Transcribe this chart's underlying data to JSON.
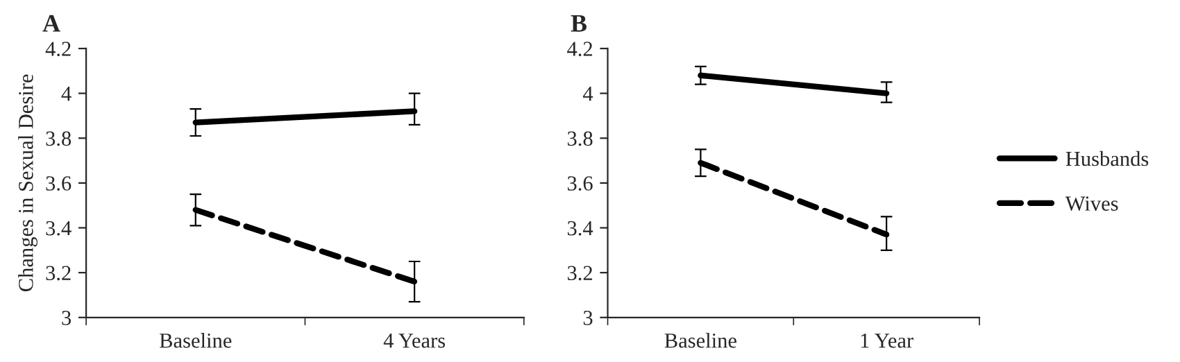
{
  "chart_data": [
    {
      "type": "line",
      "title": "A",
      "ylabel": "Changes in Sexual Desire",
      "categories": [
        "Baseline",
        "4 Years"
      ],
      "ylim": [
        3,
        4.2
      ],
      "yticks": [
        3,
        3.2,
        3.4,
        3.6,
        3.8,
        4,
        4.2
      ],
      "grid": false,
      "legend": false,
      "series": [
        {
          "color": "#000000",
          "line_style": "solid",
          "values": [
            3.87,
            3.92
          ],
          "errors": [
            [
              3.81,
              3.93
            ],
            [
              3.86,
              4.0
            ]
          ]
        },
        {
          "color": "#000000",
          "line_style": "dashed",
          "values": [
            3.48,
            3.16
          ],
          "errors": [
            [
              3.41,
              3.55
            ],
            [
              3.07,
              3.25
            ]
          ]
        }
      ]
    },
    {
      "type": "line",
      "title": "B",
      "categories": [
        "Baseline",
        "1 Year"
      ],
      "ylim": [
        3,
        4.2
      ],
      "yticks": [
        3,
        3.2,
        3.4,
        3.6,
        3.8,
        4,
        4.2
      ],
      "grid": false,
      "legend": "right",
      "series": [
        {
          "name": "Husbands",
          "color": "#000000",
          "line_style": "solid",
          "values": [
            4.08,
            4.0
          ],
          "errors": [
            [
              4.04,
              4.12
            ],
            [
              3.96,
              4.05
            ]
          ]
        },
        {
          "name": "Wives",
          "color": "#000000",
          "line_style": "dashed",
          "values": [
            3.69,
            3.37
          ],
          "errors": [
            [
              3.63,
              3.75
            ],
            [
              3.3,
              3.45
            ]
          ]
        }
      ]
    }
  ]
}
